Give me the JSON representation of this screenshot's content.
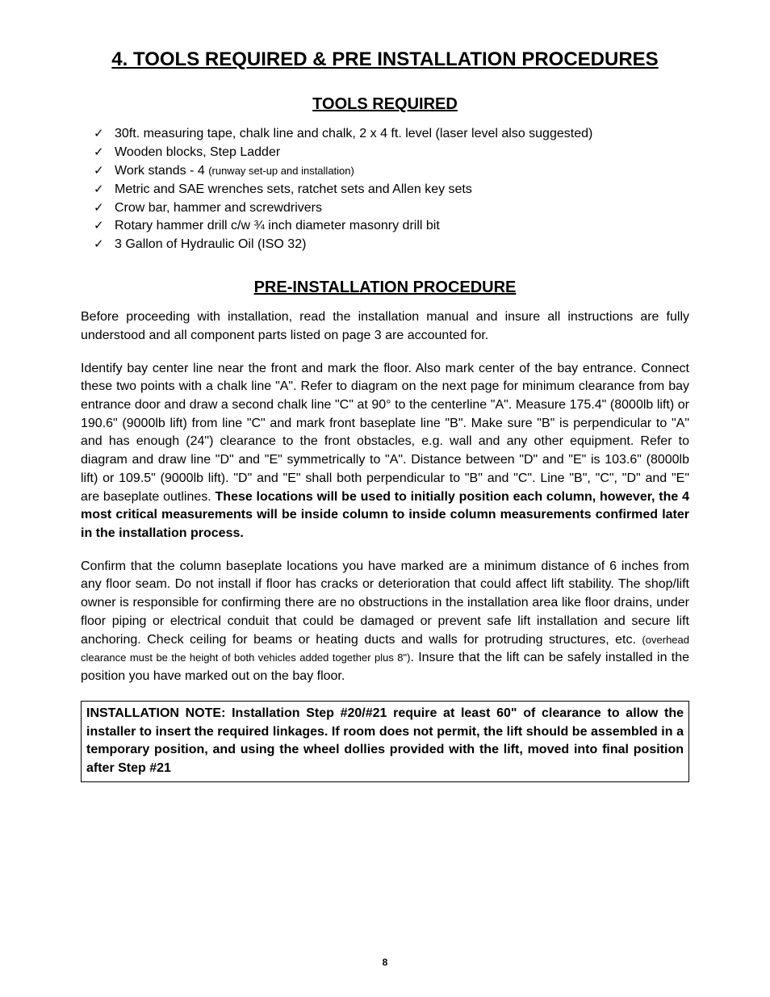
{
  "main_title": "4. TOOLS REQUIRED & PRE INSTALLATION PROCEDURES",
  "tools_section": {
    "title": "TOOLS REQUIRED",
    "items": [
      {
        "text": "30ft. measuring tape, chalk line and chalk, 2 x 4 ft. level (laser level also suggested)"
      },
      {
        "text": "Wooden blocks, Step Ladder"
      },
      {
        "text": "Work stands - 4 ",
        "suffix_small": "(runway set-up and installation)"
      },
      {
        "text": "Metric and SAE wrenches sets, ratchet sets and Allen key sets"
      },
      {
        "text": "Crow bar, hammer and screwdrivers"
      },
      {
        "text": "Rotary hammer drill c/w ¾ inch diameter masonry drill bit"
      },
      {
        "text": "3 Gallon of Hydraulic Oil (ISO 32)"
      }
    ]
  },
  "procedure_section": {
    "title": "PRE-INSTALLATION PROCEDURE",
    "para1": "Before proceeding with installation, read the installation manual and insure all instructions are fully understood and all component parts listed on page 3 are accounted for.",
    "para2_normal": "Identify bay center line near the front and mark the floor. Also mark center of the bay entrance. Connect these two points with a chalk line \"A\". Refer to diagram on the next page for minimum clearance from bay entrance door and draw a second chalk line \"C\" at 90° to the centerline \"A\". Measure 175.4\" (8000lb lift) or 190.6\" (9000lb lift) from line \"C\" and mark front baseplate line \"B\". Make sure \"B\" is perpendicular to \"A\" and has enough (24\") clearance to the front obstacles, e.g. wall and any other equipment. Refer to diagram and draw line \"D\" and \"E\" symmetrically to \"A\". Distance between \"D\" and \"E\" is 103.6\" (8000lb lift) or 109.5\" (9000lb lift). \"D\" and \"E\" shall both perpendicular to \"B\" and \"C\". Line \"B\", \"C\", \"D\" and \"E\" are baseplate outlines. ",
    "para2_bold": "These locations will be used to initially position each column, however, the 4 most critical measurements will be inside column to inside column measurements confirmed later in the installation process.",
    "para3_part1": "Confirm that the column baseplate locations you have marked are a minimum distance of 6 inches from any floor seam.  Do not install if floor has cracks or deterioration that could affect lift stability. The shop/lift owner is responsible for confirming there are no obstructions in the installation area like floor drains, under floor piping or electrical conduit that could be damaged or prevent safe lift installation and secure lift anchoring.  Check ceiling for beams or heating ducts and walls for protruding structures, etc. ",
    "para3_small": "(overhead clearance must be the height of both vehicles added together plus 8\")",
    "para3_part2": ".  Insure that the lift can be safely installed in the position you have marked out on the bay floor.",
    "note": "INSTALLATION NOTE:  Installation Step #20/#21 require at least 60\" of clearance to allow the installer to insert the required linkages. If room does not permit, the lift should be assembled in a temporary position, and using the wheel dollies provided with the lift, moved into final position after Step #21"
  },
  "page_number": "8"
}
